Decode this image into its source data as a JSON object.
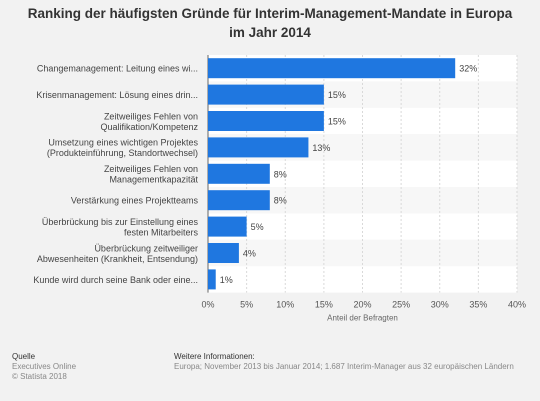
{
  "title": "Ranking der häufigsten Gründe für Interim-Management-Mandate in Europa im Jahr 2014",
  "chart_data": {
    "type": "bar",
    "orientation": "horizontal",
    "title": "Ranking der häufigsten Gründe für Interim-Management-Mandate in Europa im Jahr 2014",
    "categories": [
      [
        "Changemanagement: Leitung eines wi..."
      ],
      [
        "Krisenmanagement: Lösung eines drin..."
      ],
      [
        "Zeitweiliges Fehlen von",
        "Qualifikation/Kompetenz"
      ],
      [
        "Umsetzung eines wichtigen Projektes",
        "(Produkteinführung, Standortwechsel)"
      ],
      [
        "Zeitweiliges Fehlen von",
        "Managementkapazität"
      ],
      [
        "Verstärkung eines Projektteams"
      ],
      [
        "Überbrückung bis zur Einstellung eines",
        "festen Mitarbeiters"
      ],
      [
        "Überbrückung zeitweiliger",
        "Abwesenheiten (Krankheit, Entsendung)"
      ],
      [
        "Kunde wird durch seine Bank oder eine..."
      ]
    ],
    "values": [
      32,
      15,
      15,
      13,
      8,
      8,
      5,
      4,
      1
    ],
    "value_labels": [
      "32%",
      "15%",
      "15%",
      "13%",
      "8%",
      "8%",
      "5%",
      "4%",
      "1%"
    ],
    "x_ticks": [
      "0%",
      "5%",
      "10%",
      "15%",
      "20%",
      "25%",
      "30%",
      "35%",
      "40%"
    ],
    "xlim": [
      0,
      40
    ],
    "xlabel": "Anteil der Befragten",
    "ylabel": "",
    "bar_color": "#1f77e0",
    "grid": true
  },
  "footer": {
    "source_label": "Quelle",
    "source_lines": [
      "Executives Online",
      "© Statista 2018"
    ],
    "info_label": "Weitere Informationen:",
    "info_text": "Europa; November 2013 bis Januar 2014; 1.687 Interim-Manager aus 32 europäischen Ländern"
  }
}
